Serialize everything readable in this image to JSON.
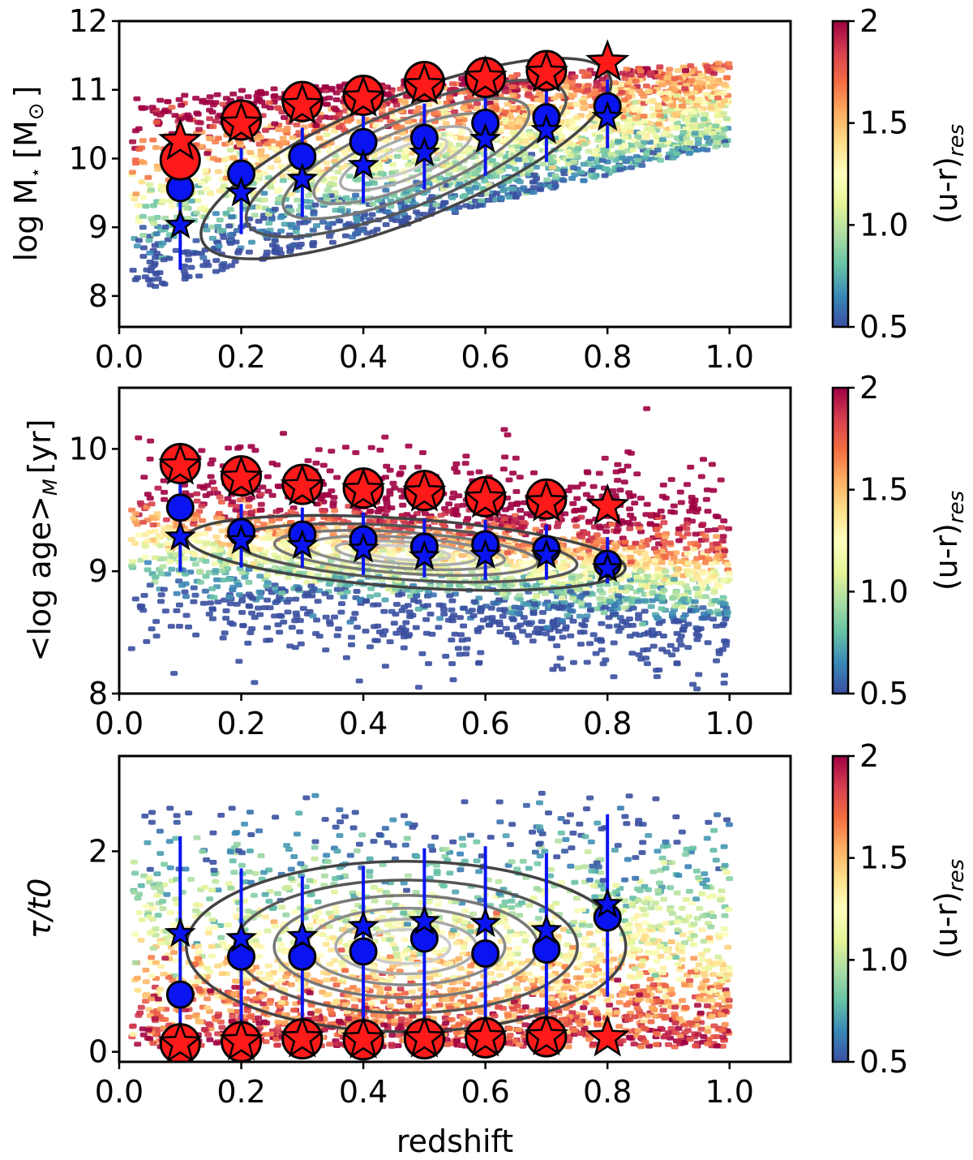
{
  "figure": {
    "colormap": [
      "#3a4fa0",
      "#3a88b8",
      "#66c2a5",
      "#abdda4",
      "#e6f598",
      "#ffffbf",
      "#fee08b",
      "#fdae61",
      "#f46d43",
      "#d53e4f",
      "#9e0142"
    ],
    "colors": {
      "red": "#ff1a1a",
      "blue": "#0a14f0",
      "edge": "#000000",
      "err_red": "#ff1a1a",
      "err_blue": "#0a14f0"
    }
  },
  "chart_data": [
    {
      "type": "scatter",
      "panel": "top",
      "xlabel": "redshift",
      "ylabel": "log M⋆ [M⊙]",
      "ylabel_main": "log M",
      "ylabel_star": "⋆",
      "ylabel_bracket_open": "[M",
      "ylabel_sun": "⊙",
      "ylabel_bracket_close": "]",
      "xlim": [
        0.0,
        1.1
      ],
      "ylim": [
        7.55,
        12.0
      ],
      "xticks": [
        0.0,
        0.2,
        0.4,
        0.6,
        0.8,
        1.0
      ],
      "xtick_labels": [
        "0.0",
        "0.2",
        "0.4",
        "0.6",
        "0.8",
        "1.0"
      ],
      "yticks": [
        8,
        9,
        10,
        11,
        12
      ],
      "ytick_labels": [
        "8",
        "9",
        "10",
        "11",
        "12"
      ],
      "colorbar": {
        "label": "(u-r)res",
        "label_main": "(u-r)",
        "label_sub": "res",
        "range": [
          0.5,
          2.0
        ],
        "ticks": [
          0.5,
          1.0,
          1.5,
          2.0
        ],
        "tick_labels": [
          "0.5",
          "1.0",
          "1.5",
          "2"
        ]
      },
      "series": [
        {
          "name": "red circles",
          "marker": "circle",
          "color": "red",
          "x": [
            0.1,
            0.2,
            0.3,
            0.4,
            0.5,
            0.6,
            0.7
          ],
          "y": [
            9.98,
            10.56,
            10.83,
            10.92,
            11.12,
            11.18,
            11.28
          ]
        },
        {
          "name": "red stars",
          "marker": "star",
          "color": "red",
          "x": [
            0.1,
            0.2,
            0.3,
            0.4,
            0.5,
            0.6,
            0.7,
            0.8
          ],
          "y": [
            10.25,
            10.5,
            10.77,
            10.88,
            11.06,
            11.17,
            11.24,
            11.4
          ]
        },
        {
          "name": "blue circles",
          "marker": "circle",
          "color": "blue",
          "x": [
            0.1,
            0.2,
            0.3,
            0.4,
            0.5,
            0.6,
            0.7,
            0.8
          ],
          "y": [
            9.57,
            9.78,
            10.03,
            10.24,
            10.3,
            10.52,
            10.6,
            10.76
          ],
          "err_low": [
            8.38,
            8.9,
            9.15,
            9.35,
            9.55,
            9.75,
            9.95,
            10.15
          ],
          "err_high": [
            9.7,
            10.15,
            10.45,
            10.65,
            10.8,
            10.95,
            11.1,
            11.15
          ]
        },
        {
          "name": "blue stars",
          "marker": "star",
          "color": "blue",
          "x": [
            0.1,
            0.2,
            0.3,
            0.4,
            0.5,
            0.6,
            0.7,
            0.8
          ],
          "y": [
            9.03,
            9.5,
            9.7,
            9.9,
            10.08,
            10.28,
            10.41,
            10.6
          ]
        }
      ]
    },
    {
      "type": "scatter",
      "panel": "middle",
      "xlabel": "",
      "ylabel": "<log age>M [yr]",
      "ylabel_main": "<log age>",
      "ylabel_sub": "M",
      "ylabel_unit": "[yr]",
      "xlim": [
        0.0,
        1.1
      ],
      "ylim": [
        8.0,
        10.5
      ],
      "xticks": [
        0.0,
        0.2,
        0.4,
        0.6,
        0.8,
        1.0
      ],
      "xtick_labels": [
        "0.0",
        "0.2",
        "0.4",
        "0.6",
        "0.8",
        "1.0"
      ],
      "yticks": [
        8,
        9,
        10
      ],
      "ytick_labels": [
        "8",
        "9",
        "10"
      ],
      "colorbar": {
        "label": "(u-r)res",
        "label_main": "(u-r)",
        "label_sub": "res",
        "range": [
          0.5,
          2.0
        ],
        "ticks": [
          0.5,
          1.0,
          1.5,
          2.0
        ],
        "tick_labels": [
          "0.5",
          "1.0",
          "1.5",
          "2"
        ]
      },
      "series": [
        {
          "name": "red circles",
          "marker": "circle",
          "color": "red",
          "x": [
            0.1,
            0.2,
            0.3,
            0.4,
            0.5,
            0.6,
            0.7
          ],
          "y": [
            9.88,
            9.78,
            9.71,
            9.68,
            9.66,
            9.61,
            9.59
          ]
        },
        {
          "name": "red stars",
          "marker": "star",
          "color": "red",
          "x": [
            0.1,
            0.2,
            0.3,
            0.4,
            0.5,
            0.6,
            0.7,
            0.8
          ],
          "y": [
            9.86,
            9.76,
            9.69,
            9.66,
            9.64,
            9.59,
            9.56,
            9.53
          ]
        },
        {
          "name": "blue circles",
          "marker": "circle",
          "color": "blue",
          "x": [
            0.1,
            0.2,
            0.3,
            0.4,
            0.5,
            0.6,
            0.7,
            0.8
          ],
          "y": [
            9.52,
            9.32,
            9.3,
            9.26,
            9.2,
            9.22,
            9.18,
            9.06
          ],
          "err_low": [
            9.0,
            9.03,
            9.03,
            8.97,
            8.95,
            8.93,
            8.93,
            8.9
          ],
          "err_high": [
            9.75,
            9.55,
            9.52,
            9.48,
            9.43,
            9.42,
            9.38,
            9.28
          ]
        },
        {
          "name": "blue stars",
          "marker": "star",
          "color": "blue",
          "x": [
            0.1,
            0.2,
            0.3,
            0.4,
            0.5,
            0.6,
            0.7,
            0.8
          ],
          "y": [
            9.28,
            9.25,
            9.21,
            9.18,
            9.12,
            9.13,
            9.13,
            9.02
          ]
        }
      ]
    },
    {
      "type": "scatter",
      "panel": "bottom",
      "xlabel": "redshift",
      "ylabel": "τ/t0",
      "ylabel_main": "τ/t0",
      "xlim": [
        0.0,
        1.1
      ],
      "ylim": [
        -0.1,
        2.95
      ],
      "xticks": [
        0.0,
        0.2,
        0.4,
        0.6,
        0.8,
        1.0
      ],
      "xtick_labels": [
        "0.0",
        "0.2",
        "0.4",
        "0.6",
        "0.8",
        "1.0"
      ],
      "yticks": [
        0,
        2
      ],
      "ytick_labels": [
        "0",
        "2"
      ],
      "colorbar": {
        "label": "(u-r)res",
        "label_main": "(u-r)",
        "label_sub": "res",
        "range": [
          0.5,
          2.0
        ],
        "ticks": [
          0.5,
          1.0,
          1.5,
          2.0
        ],
        "tick_labels": [
          "0.5",
          "1.0",
          "1.5",
          "2"
        ]
      },
      "series": [
        {
          "name": "red circles",
          "marker": "circle",
          "color": "red",
          "x": [
            0.1,
            0.2,
            0.3,
            0.4,
            0.5,
            0.6,
            0.7
          ],
          "y": [
            0.08,
            0.1,
            0.13,
            0.12,
            0.13,
            0.14,
            0.15
          ]
        },
        {
          "name": "red stars",
          "marker": "star",
          "color": "red",
          "x": [
            0.1,
            0.2,
            0.3,
            0.4,
            0.5,
            0.6,
            0.7,
            0.8
          ],
          "y": [
            0.08,
            0.1,
            0.13,
            0.12,
            0.13,
            0.14,
            0.15,
            0.14
          ]
        },
        {
          "name": "blue circles",
          "marker": "circle",
          "color": "blue",
          "x": [
            0.1,
            0.2,
            0.3,
            0.4,
            0.5,
            0.6,
            0.7,
            0.8
          ],
          "y": [
            0.57,
            0.95,
            0.95,
            1.0,
            1.13,
            0.98,
            1.02,
            1.34
          ],
          "err_low": [
            0.05,
            0.2,
            0.2,
            0.2,
            0.3,
            0.3,
            0.3,
            0.55
          ],
          "err_high": [
            2.15,
            1.83,
            1.75,
            1.85,
            2.03,
            2.05,
            1.98,
            2.37
          ]
        },
        {
          "name": "blue stars",
          "marker": "star",
          "color": "blue",
          "x": [
            0.1,
            0.2,
            0.3,
            0.4,
            0.5,
            0.6,
            0.7,
            0.8
          ],
          "y": [
            1.18,
            1.13,
            1.15,
            1.25,
            1.3,
            1.28,
            1.21,
            1.47
          ]
        }
      ]
    }
  ]
}
